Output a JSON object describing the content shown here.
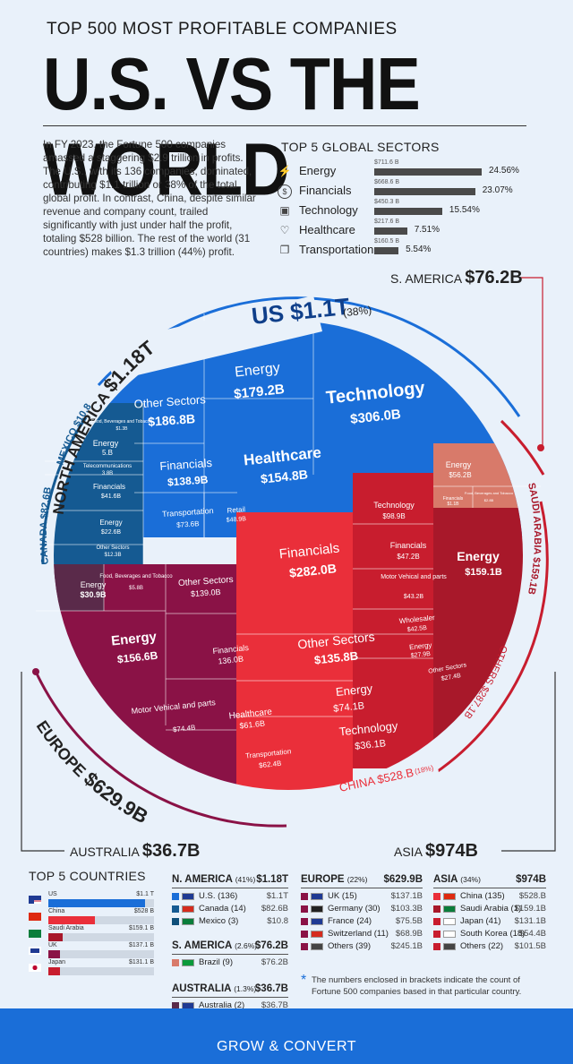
{
  "header": {
    "kicker": "TOP 500 MOST PROFITABLE COMPANIES",
    "title": "U.S. VS THE WORLD"
  },
  "intro": "In FY 2023, the Fortune 500 companies amassed a staggering $2.9 trillion in profits. The U.S., with its 136 companies, dominated, contributing $1.1 trillion or 38% of the total global profit. In contrast, China, despite similar revenue and company count, trailed significantly with just under half the profit, totaling $528 billion. The rest of the world (31 countries) makes $1.3 trillion (44%) profit.",
  "sectors": {
    "title": "TOP 5 GLOBAL SECTORS",
    "items": [
      {
        "name": "Energy",
        "value_label": "$711.6 B",
        "value": 711.6,
        "pct": "24.56%",
        "icon": "lightning-icon"
      },
      {
        "name": "Financials",
        "value_label": "$668.6 B",
        "value": 668.6,
        "pct": "23.07%",
        "icon": "dollar-coin-icon"
      },
      {
        "name": "Technology",
        "value_label": "$450.3 B",
        "value": 450.3,
        "pct": "15.54%",
        "icon": "chip-icon"
      },
      {
        "name": "Healthcare",
        "value_label": "$217.6 B",
        "value": 217.6,
        "pct": "7.51%",
        "icon": "heartbeat-icon"
      },
      {
        "name": "Transportation",
        "value_label": "$160.5 B",
        "value": 160.5,
        "pct": "5.54%",
        "icon": "truck-icon"
      }
    ]
  },
  "regions": {
    "north_america_label": "NORTH AMERICA",
    "north_america_value": "$1.18T",
    "s_america_label": "S. AMERICA",
    "s_america_value": "$76.2B",
    "us_label": "US $1.1T",
    "us_pct": "(38%)",
    "mexico": "MEXICO $10.8",
    "canada": "CANADA $82.6B",
    "saudi": "SAUDI ARABIA $159.1B",
    "others": "OTHERS $287.1B",
    "europe_label": "EUROPE",
    "europe_value": "$629.9B",
    "china_label": "CHINA $528.B",
    "china_pct": "(18%)",
    "australia_label": "AUSTRALIA",
    "australia_value": "$36.7B",
    "asia_label": "ASIA",
    "asia_value": "$974B"
  },
  "tiles": {
    "us": [
      {
        "name": "Other Sectors",
        "value": "$186.8B"
      },
      {
        "name": "Energy",
        "value": "$179.2B"
      },
      {
        "name": "Technology",
        "value": "$306.0B"
      },
      {
        "name": "Financials",
        "value": "$138.9B"
      },
      {
        "name": "Healthcare",
        "value": "$154.8B"
      },
      {
        "name": "Transportation",
        "value": "$73.6B"
      },
      {
        "name": "Retail",
        "value": "$48.9B"
      }
    ],
    "canada_mexico": [
      {
        "name": "Food, Beverages and Tobacco",
        "value": "$1.3B"
      },
      {
        "name": "Energy",
        "value": "5.B"
      },
      {
        "name": "Telecommunications",
        "value": "3.8B"
      },
      {
        "name": "Financials",
        "value": "$41.6B"
      },
      {
        "name": "Energy",
        "value": "$22.6B"
      },
      {
        "name": "Other Sectors",
        "value": "$12.3B"
      }
    ],
    "europe": [
      {
        "name": "Energy",
        "value": "$30.9B"
      },
      {
        "name": "Food, Beverages and Tobacco",
        "value": "$5.8B"
      },
      {
        "name": "Other Sectors",
        "value": "$139.0B"
      },
      {
        "name": "Energy",
        "value": "$156.6B"
      },
      {
        "name": "Financials",
        "value": "136.0B"
      },
      {
        "name": "Motor Vehical and parts",
        "value": "$74.4B"
      },
      {
        "name": "Healthcare",
        "value": "$61.6B"
      },
      {
        "name": "Transportation",
        "value": "$62.4B"
      }
    ],
    "china": [
      {
        "name": "Financials",
        "value": "$282.0B"
      },
      {
        "name": "Other Sectors",
        "value": "$135.8B"
      },
      {
        "name": "Energy",
        "value": "$74.1B"
      },
      {
        "name": "Technology",
        "value": "$36.1B"
      }
    ],
    "others": [
      {
        "name": "Technology",
        "value": "$98.9B"
      },
      {
        "name": "Financials",
        "value": "$47.2B"
      },
      {
        "name": "Motor Vehical and parts",
        "value": "$43.2B"
      },
      {
        "name": "Wholesaler",
        "value": "$42.5B"
      },
      {
        "name": "Energy",
        "value": "$27.9B"
      },
      {
        "name": "Other Sectors",
        "value": "$27.4B"
      }
    ],
    "saudi": [
      {
        "name": "Energy",
        "value": "$56.2B"
      },
      {
        "name": "Financials",
        "value": "$1.1B"
      },
      {
        "name": "Food, Beverages and Tobacco",
        "value": "$2.8B"
      },
      {
        "name": "Energy",
        "value": "$159.1B"
      }
    ]
  },
  "top_countries": {
    "title": "TOP 5 COUNTRIES",
    "items": [
      {
        "name": "US",
        "value_label": "$1.1 T",
        "value": 1100
      },
      {
        "name": "China",
        "value_label": "$528 B",
        "value": 528
      },
      {
        "name": "Saudi Arabia",
        "value_label": "$159.1 B",
        "value": 159.1
      },
      {
        "name": "UK",
        "value_label": "$137.1 B",
        "value": 137.1
      },
      {
        "name": "Japan",
        "value_label": "$131.1 B",
        "value": 131.1
      }
    ]
  },
  "tables": {
    "north_america": {
      "title": "N. AMERICA",
      "pct": "(41%)",
      "total": "$1.18T",
      "rows": [
        {
          "name": "U.S. (136)",
          "value": "$1.1T"
        },
        {
          "name": "Canada (14)",
          "value": "$82.6B"
        },
        {
          "name": "Mexico (3)",
          "value": "$10.8"
        }
      ]
    },
    "s_america": {
      "title": "S. AMERICA",
      "pct": "(2.6%)",
      "total": "$76.2B",
      "rows": [
        {
          "name": "Brazil (9)",
          "value": "$76.2B"
        }
      ]
    },
    "australia": {
      "title": "AUSTRALIA",
      "pct": "(1.3%)",
      "total": "$36.7B",
      "rows": [
        {
          "name": "Australia (2)",
          "value": "$36.7B"
        }
      ]
    },
    "europe": {
      "title": "EUROPE",
      "pct": "(22%)",
      "total": "$629.9B",
      "rows": [
        {
          "name": "UK (15)",
          "value": "$137.1B"
        },
        {
          "name": "Germany (30)",
          "value": "$103.3B"
        },
        {
          "name": "France (24)",
          "value": "$75.5B"
        },
        {
          "name": "Switzerland (11)",
          "value": "$68.9B"
        },
        {
          "name": "Others (39)",
          "value": "$245.1B"
        }
      ]
    },
    "asia": {
      "title": "ASIA",
      "pct": "(34%)",
      "total": "$974B",
      "rows": [
        {
          "name": "China (135)",
          "value": "$528.B"
        },
        {
          "name": "Saudi Arabia (1)",
          "value": "$159.1B"
        },
        {
          "name": "Japan (41)",
          "value": "$131.1B"
        },
        {
          "name": "South Korea (18)",
          "value": "$54.4B"
        },
        {
          "name": "Others (22)",
          "value": "$101.5B"
        }
      ]
    }
  },
  "footnote": "The numbers enclosed in brackets indicate the count of Fortune 500 companies based in that particular country.",
  "footer": "GROW & CONVERT",
  "chart_data": [
    {
      "type": "bar",
      "title": "TOP 5 GLOBAL SECTORS",
      "categories": [
        "Energy",
        "Financials",
        "Technology",
        "Healthcare",
        "Transportation"
      ],
      "values": [
        711.6,
        668.6,
        450.3,
        217.6,
        160.5
      ]
    },
    {
      "type": "bar",
      "title": "TOP 5 COUNTRIES",
      "categories": [
        "US",
        "China",
        "Saudi Arabia",
        "UK",
        "Japan"
      ],
      "values": [
        1100,
        528,
        159.1,
        137.1,
        131.1
      ]
    }
  ],
  "colors": {
    "us_blue": "#1a6ed8",
    "us_dark": "#0f5fc4",
    "na_dark": "#155a92",
    "europe": "#8a1246",
    "china": "#ea2f3a",
    "others": "#c81d2e",
    "saudi": "#a8182a",
    "saudi_light": "#d87a6a"
  }
}
